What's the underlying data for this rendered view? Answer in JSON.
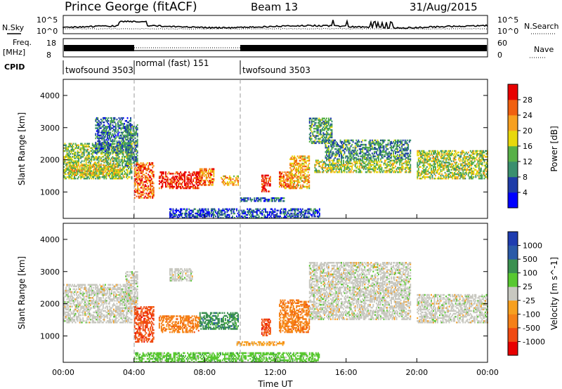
{
  "header": {
    "site": "Prince George (fitACF)",
    "beam": "Beam 13",
    "date": "31/Aug/2015"
  },
  "left_labels": {
    "nsky": "N.Sky",
    "freq1": "Freq.",
    "freq2": "[MHz]",
    "cpid": "CPID"
  },
  "right_labels": {
    "nsearch": "N.Search",
    "nave": "Nave"
  },
  "noise_panel": {
    "yticks": [
      "10^5",
      "10^0"
    ],
    "right_yticks": [
      "10^5",
      "10^0"
    ]
  },
  "freq_panel": {
    "yticks": [
      "18",
      "8"
    ],
    "right_yticks": [
      "60",
      "0"
    ]
  },
  "cpid_segments": [
    {
      "label": "twofsound 3503",
      "start_hour": 0
    },
    {
      "label": "normal (fast) 151",
      "start_hour": 4
    },
    {
      "label": "twofsound 3503",
      "start_hour": 10
    }
  ],
  "x_axis": {
    "label": "Time UT",
    "ticks": [
      "00:00",
      "04:00",
      "08:00",
      "12:00",
      "16:00",
      "20:00",
      "00:00"
    ]
  },
  "chart_data": [
    {
      "type": "heatmap",
      "ylabel": "Slant Range [km]",
      "yticks": [
        "4000",
        "3000",
        "2000",
        "1000"
      ],
      "xlim": [
        0,
        24
      ],
      "ylim": [
        180,
        4500
      ],
      "colorbar": {
        "label": "Power [dB]",
        "ticks": [
          "28",
          "24",
          "20",
          "16",
          "12",
          "8",
          "4"
        ],
        "colors": [
          "#0000ff",
          "#1e3ca8",
          "#3a8f6e",
          "#58b048",
          "#e8d80c",
          "#f7a020",
          "#f06010",
          "#e80000"
        ]
      },
      "regions": [
        {
          "t0": 0.0,
          "t1": 3.9,
          "r0": 1400,
          "r1": 2500,
          "level": 0.45
        },
        {
          "t0": 0.3,
          "t1": 3.2,
          "r0": 1500,
          "r1": 1850,
          "level": 0.6
        },
        {
          "t0": 1.8,
          "t1": 3.8,
          "r0": 2200,
          "r1": 3300,
          "level": 0.25
        },
        {
          "t0": 3.5,
          "t1": 4.2,
          "r0": 1800,
          "r1": 3100,
          "level": 0.3
        },
        {
          "t0": 4.0,
          "t1": 5.1,
          "r0": 800,
          "r1": 1900,
          "level": 0.85
        },
        {
          "t0": 5.4,
          "t1": 7.7,
          "r0": 1100,
          "r1": 1600,
          "level": 0.98
        },
        {
          "t0": 7.7,
          "t1": 8.5,
          "r0": 1200,
          "r1": 1700,
          "level": 0.8
        },
        {
          "t0": 8.9,
          "t1": 9.9,
          "r0": 1200,
          "r1": 1500,
          "level": 0.7
        },
        {
          "t0": 11.2,
          "t1": 11.7,
          "r0": 1000,
          "r1": 1500,
          "level": 0.95
        },
        {
          "t0": 12.2,
          "t1": 12.9,
          "r0": 1100,
          "r1": 1600,
          "level": 0.8
        },
        {
          "t0": 12.8,
          "t1": 13.9,
          "r0": 1100,
          "r1": 2100,
          "level": 0.7
        },
        {
          "t0": 13.9,
          "t1": 15.2,
          "r0": 2500,
          "r1": 3300,
          "level": 0.35
        },
        {
          "t0": 14.8,
          "t1": 19.6,
          "r0": 2000,
          "r1": 2600,
          "level": 0.3
        },
        {
          "t0": 14.2,
          "t1": 19.6,
          "r0": 1600,
          "r1": 2000,
          "level": 0.5
        },
        {
          "t0": 20.0,
          "t1": 24.0,
          "r0": 1400,
          "r1": 2300,
          "level": 0.5
        },
        {
          "t0": 6.0,
          "t1": 14.5,
          "r0": 180,
          "r1": 480,
          "level": 0.15
        },
        {
          "t0": 10.0,
          "t1": 12.5,
          "r0": 700,
          "r1": 820,
          "level": 0.2
        }
      ]
    },
    {
      "type": "heatmap",
      "ylabel": "Slant Range [km]",
      "yticks": [
        "4000",
        "3000",
        "2000",
        "1000"
      ],
      "xlim": [
        0,
        24
      ],
      "ylim": [
        180,
        4500
      ],
      "colorbar": {
        "label": "Velocity [m s^-1]",
        "ticks": [
          "1000",
          "500",
          "100",
          "25",
          "-25",
          "-100",
          "-500",
          "-1000"
        ],
        "colors": [
          "#e80000",
          "#f04a12",
          "#f58018",
          "#f7a020",
          "#c8c8c0",
          "#58c830",
          "#3a9050",
          "#2a5aa8",
          "#1e3cb0"
        ]
      },
      "regions": [
        {
          "t0": 0.0,
          "t1": 3.9,
          "r0": 1400,
          "r1": 2600,
          "cls": 4
        },
        {
          "t0": 3.5,
          "t1": 4.2,
          "r0": 1800,
          "r1": 3000,
          "cls": 4
        },
        {
          "t0": 4.0,
          "t1": 5.1,
          "r0": 800,
          "r1": 1900,
          "cls": 1
        },
        {
          "t0": 5.4,
          "t1": 7.7,
          "r0": 1100,
          "r1": 1600,
          "cls": 2
        },
        {
          "t0": 7.7,
          "t1": 9.9,
          "r0": 1200,
          "r1": 1700,
          "cls": 6
        },
        {
          "t0": 6.0,
          "t1": 7.3,
          "r0": 2700,
          "r1": 3100,
          "cls": 4
        },
        {
          "t0": 11.2,
          "t1": 11.7,
          "r0": 1000,
          "r1": 1500,
          "cls": 1
        },
        {
          "t0": 12.2,
          "t1": 13.9,
          "r0": 1100,
          "r1": 2100,
          "cls": 2
        },
        {
          "t0": 13.9,
          "t1": 19.6,
          "r0": 1500,
          "r1": 3300,
          "cls": 4
        },
        {
          "t0": 20.0,
          "t1": 24.0,
          "r0": 1400,
          "r1": 2300,
          "cls": 4
        },
        {
          "t0": 4.0,
          "t1": 14.5,
          "r0": 180,
          "r1": 480,
          "cls": 5
        },
        {
          "t0": 9.8,
          "t1": 12.5,
          "r0": 700,
          "r1": 820,
          "cls": 3
        }
      ]
    }
  ]
}
